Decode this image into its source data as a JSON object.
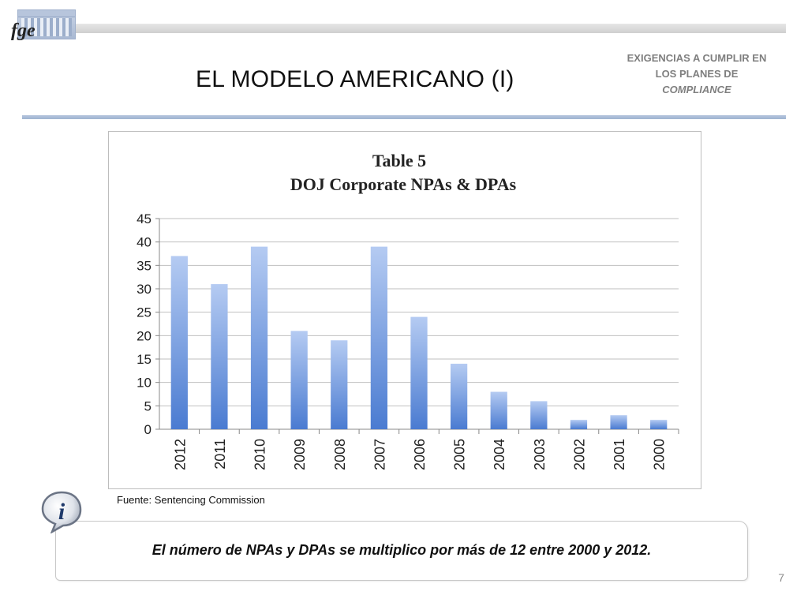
{
  "header": {
    "logo_text": "fge",
    "title": "EL MODELO AMERICANO (I)",
    "side_heading": {
      "line1": "EXIGENCIAS A CUMPLIR EN",
      "line2": "LOS PLANES DE",
      "line3": "COMPLIANCE"
    }
  },
  "chart_data": {
    "type": "bar",
    "title": "Table 5",
    "subtitle": "DOJ Corporate NPAs & DPAs",
    "xlabel": "",
    "ylabel": "",
    "categories": [
      "2012",
      "2011",
      "2010",
      "2009",
      "2008",
      "2007",
      "2006",
      "2005",
      "2004",
      "2003",
      "2002",
      "2001",
      "2000"
    ],
    "values": [
      37,
      31,
      39,
      21,
      19,
      39,
      24,
      14,
      8,
      6,
      2,
      3,
      2
    ],
    "ylim": [
      0,
      45
    ],
    "yticks": [
      0,
      5,
      10,
      15,
      20,
      25,
      30,
      35,
      40,
      45
    ],
    "grid": true,
    "legend": "none",
    "colors": {
      "bar_top": "#b5cbf2",
      "bar_bottom": "#4a7bd1",
      "grid": "#bfbfbf"
    }
  },
  "source_note": "Fuente: Sentencing  Commission",
  "info": {
    "icon": "info-icon",
    "text": "El número de NPAs y DPAs se multiplico por más de 12 entre 2000 y 2012."
  },
  "page_number": "7"
}
